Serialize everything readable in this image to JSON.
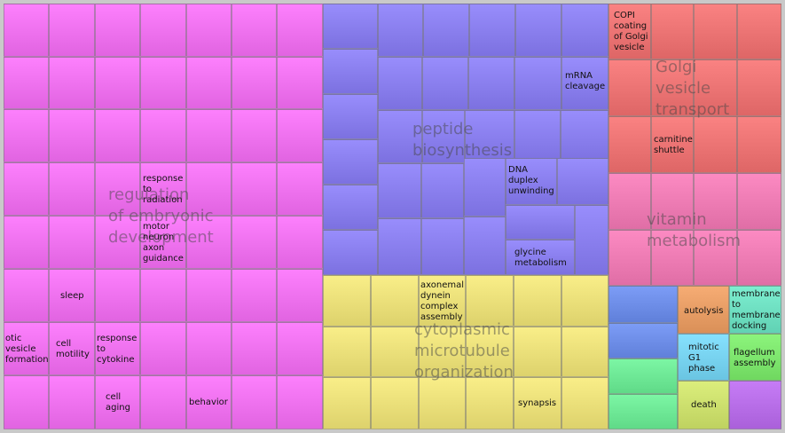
{
  "chart_data": {
    "type": "treemap",
    "groups": [
      {
        "name": "regulation of embryonic development",
        "color": "#ef72ef",
        "label_lines": [
          "regulation",
          "of embryonic",
          "development"
        ],
        "cells": [
          {
            "label": "response to radiation",
            "lines": [
              "response",
              "to",
              "radiation"
            ]
          },
          {
            "label": "motor neuron axon guidance",
            "lines": [
              "motor",
              "neuron",
              "axon",
              "guidance"
            ]
          },
          {
            "label": "sleep",
            "lines": [
              "sleep"
            ]
          },
          {
            "label": "otic vesicle formation",
            "lines": [
              "otic",
              "vesicle",
              "formation"
            ]
          },
          {
            "label": "cell motility",
            "lines": [
              "cell",
              "motility"
            ]
          },
          {
            "label": "response to cytokine",
            "lines": [
              "response",
              "to",
              "cytokine"
            ]
          },
          {
            "label": "cell aging",
            "lines": [
              "cell",
              "aging"
            ]
          },
          {
            "label": "behavior",
            "lines": [
              "behavior"
            ]
          }
        ]
      },
      {
        "name": "peptide biosynthesis",
        "color": "#8a7fee",
        "label_lines": [
          "peptide",
          "biosynthesis"
        ],
        "cells": [
          {
            "label": "mRNA cleavage",
            "lines": [
              "mRNA",
              "cleavage"
            ]
          },
          {
            "label": "DNA duplex unwinding",
            "lines": [
              "DNA",
              "duplex",
              "unwinding"
            ]
          },
          {
            "label": "glycine metabolism",
            "lines": [
              "glycine",
              "metabolism"
            ]
          }
        ]
      },
      {
        "name": "Golgi vesicle transport",
        "color": "#ec7474",
        "label_lines": [
          "Golgi",
          "vesicle",
          "transport"
        ],
        "cells": [
          {
            "label": "COPI coating of Golgi vesicle",
            "lines": [
              "COPI",
              "coating",
              "of Golgi",
              "vesicle"
            ]
          },
          {
            "label": "carnitine shuttle",
            "lines": [
              "carnitine",
              "shuttle"
            ]
          }
        ]
      },
      {
        "name": "vitamin metabolism",
        "color": "#ee7cb4",
        "label_lines": [
          "vitamin",
          "metabolism"
        ],
        "cells": []
      },
      {
        "name": "cytoplasmic microtubule organization",
        "color": "#ebe07a",
        "label_lines": [
          "cytoplasmic",
          "microtubule",
          "organization"
        ],
        "cells": [
          {
            "label": "axonemal dynein complex assembly",
            "lines": [
              "axonemal",
              "dynein",
              "complex",
              "assembly"
            ]
          },
          {
            "label": "synapsis",
            "lines": [
              "synapsis"
            ]
          }
        ]
      },
      {
        "name": "autolysis",
        "color": "#e89e66",
        "label_lines": [],
        "cells": [
          {
            "label": "autolysis",
            "lines": [
              "autolysis"
            ]
          }
        ]
      },
      {
        "name": "membrane to membrane docking",
        "color": "#6fe0c2",
        "label_lines": [],
        "cells": [
          {
            "label": "membrane to membrane docking",
            "lines": [
              "membrane",
              "to",
              "membrane",
              "docking"
            ]
          }
        ]
      },
      {
        "name": "mitotic G1 phase",
        "color": "#78d3f0",
        "label_lines": [],
        "cells": [
          {
            "label": "mitotic G1 phase",
            "lines": [
              "mitotic",
              "G1",
              "phase"
            ]
          }
        ]
      },
      {
        "name": "flagellum assembly",
        "color": "#7ee66e",
        "label_lines": [],
        "cells": [
          {
            "label": "flagellum assembly",
            "lines": [
              "flagellum",
              "assembly"
            ]
          }
        ]
      },
      {
        "name": "death",
        "color": "#cde06e",
        "label_lines": [],
        "cells": [
          {
            "label": "death",
            "lines": [
              "death"
            ]
          }
        ]
      },
      {
        "name": "",
        "color": "#6e8ee8",
        "label_lines": [],
        "cells": []
      },
      {
        "name": "",
        "color": "#6ee896",
        "label_lines": [],
        "cells": []
      },
      {
        "name": "",
        "color": "#b86ee8",
        "label_lines": [],
        "cells": []
      }
    ]
  }
}
